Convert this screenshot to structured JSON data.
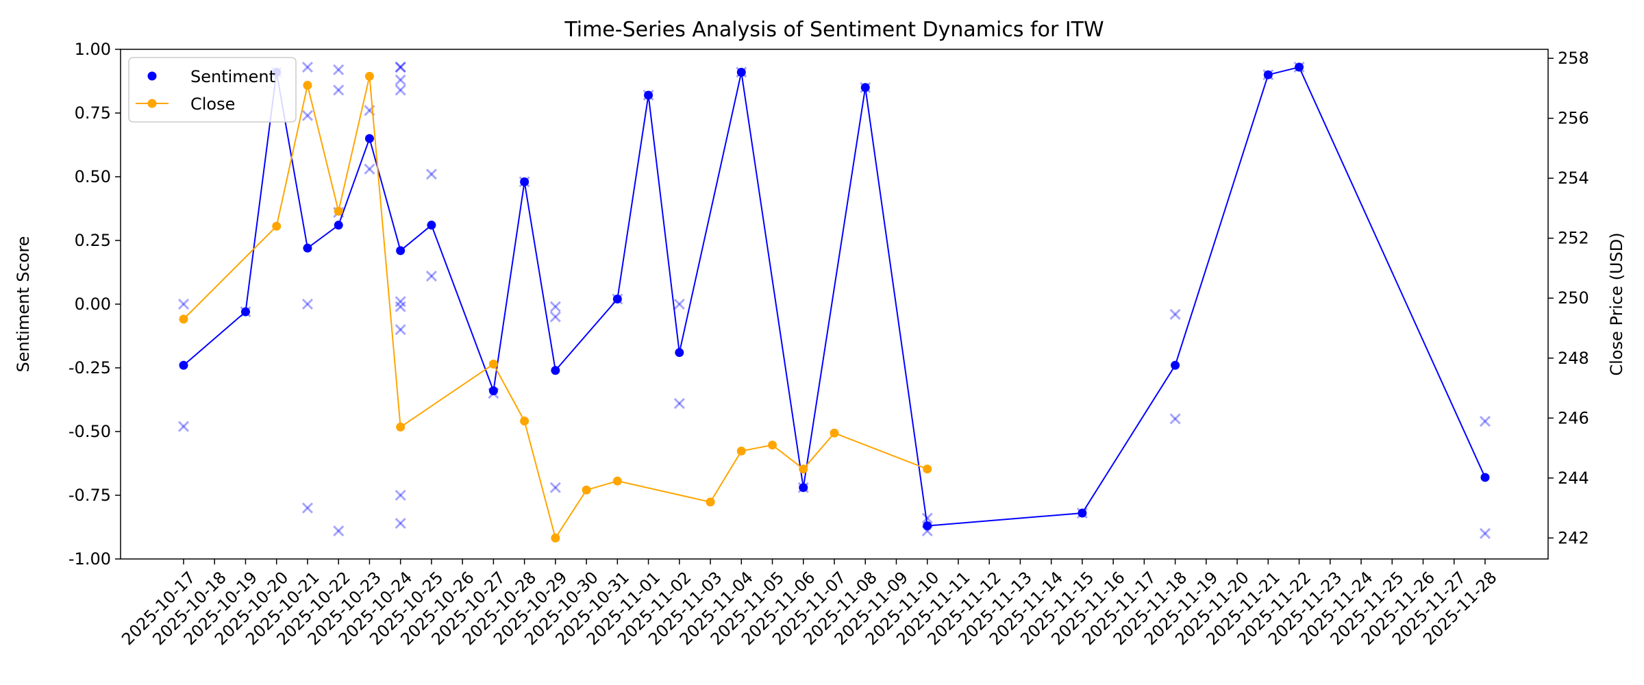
{
  "chart_data": {
    "type": "line",
    "title": "Time-Series Analysis of Sentiment Dynamics for ITW",
    "ylabel": "Sentiment Score",
    "y2label": "Close Price (USD)",
    "xlabel": "",
    "ylim": [
      -1.0,
      1.0
    ],
    "y2lim": [
      241.3,
      258.3
    ],
    "yticks": [
      "-1.00",
      "-0.75",
      "-0.50",
      "-0.25",
      "0.00",
      "0.25",
      "0.50",
      "0.75",
      "1.00"
    ],
    "y2ticks": [
      "242",
      "244",
      "246",
      "248",
      "250",
      "252",
      "254",
      "256",
      "258"
    ],
    "x_dates": [
      "2025-10-17",
      "2025-10-18",
      "2025-10-19",
      "2025-10-20",
      "2025-10-21",
      "2025-10-22",
      "2025-10-23",
      "2025-10-24",
      "2025-10-25",
      "2025-10-26",
      "2025-10-27",
      "2025-10-28",
      "2025-10-29",
      "2025-10-30",
      "2025-10-31",
      "2025-11-01",
      "2025-11-02",
      "2025-11-03",
      "2025-11-04",
      "2025-11-05",
      "2025-11-06",
      "2025-11-07",
      "2025-11-08",
      "2025-11-09",
      "2025-11-10",
      "2025-11-11",
      "2025-11-12",
      "2025-11-13",
      "2025-11-14",
      "2025-11-15",
      "2025-11-16",
      "2025-11-17",
      "2025-11-18",
      "2025-11-19",
      "2025-11-20",
      "2025-11-21",
      "2025-11-22",
      "2025-11-23",
      "2025-11-24",
      "2025-11-25",
      "2025-11-26",
      "2025-11-27",
      "2025-11-28"
    ],
    "legend_position": "top-left",
    "grid": false,
    "series": [
      {
        "name": "Sentiment",
        "color": "#0000ff",
        "axis": "left",
        "marker": "circle",
        "points": [
          [
            "2025-10-17",
            -0.24
          ],
          [
            "2025-10-19",
            -0.03
          ],
          [
            "2025-10-20",
            0.91
          ],
          [
            "2025-10-21",
            0.22
          ],
          [
            "2025-10-22",
            0.31
          ],
          [
            "2025-10-23",
            0.65
          ],
          [
            "2025-10-24",
            0.21
          ],
          [
            "2025-10-25",
            0.31
          ],
          [
            "2025-10-27",
            -0.34
          ],
          [
            "2025-10-28",
            0.48
          ],
          [
            "2025-10-29",
            -0.26
          ],
          [
            "2025-10-31",
            0.02
          ],
          [
            "2025-11-01",
            0.82
          ],
          [
            "2025-11-02",
            -0.19
          ],
          [
            "2025-11-04",
            0.91
          ],
          [
            "2025-11-06",
            -0.72
          ],
          [
            "2025-11-08",
            0.85
          ],
          [
            "2025-11-10",
            -0.87
          ],
          [
            "2025-11-15",
            -0.82
          ],
          [
            "2025-11-18",
            -0.24
          ],
          [
            "2025-11-21",
            0.9
          ],
          [
            "2025-11-22",
            0.93
          ],
          [
            "2025-11-28",
            -0.68
          ]
        ]
      },
      {
        "name": "Close",
        "color": "#ffa500",
        "axis": "right",
        "marker": "circle",
        "points": [
          [
            "2025-10-17",
            249.3
          ],
          [
            "2025-10-20",
            252.4
          ],
          [
            "2025-10-21",
            257.1
          ],
          [
            "2025-10-22",
            252.9
          ],
          [
            "2025-10-23",
            257.4
          ],
          [
            "2025-10-24",
            245.7
          ],
          [
            "2025-10-27",
            247.8
          ],
          [
            "2025-10-28",
            245.9
          ],
          [
            "2025-10-29",
            242.0
          ],
          [
            "2025-10-30",
            243.6
          ],
          [
            "2025-10-31",
            243.9
          ],
          [
            "2025-11-03",
            243.2
          ],
          [
            "2025-11-04",
            244.9
          ],
          [
            "2025-11-05",
            245.1
          ],
          [
            "2025-11-06",
            244.3
          ],
          [
            "2025-11-07",
            245.5
          ],
          [
            "2025-11-10",
            244.3
          ]
        ]
      }
    ],
    "raw_scores": {
      "color": "#0000ff",
      "marker": "x",
      "points": [
        [
          "2025-10-17",
          0.0
        ],
        [
          "2025-10-17",
          -0.48
        ],
        [
          "2025-10-19",
          -0.03
        ],
        [
          "2025-10-20",
          0.91
        ],
        [
          "2025-10-21",
          0.93
        ],
        [
          "2025-10-21",
          0.74
        ],
        [
          "2025-10-21",
          0.0
        ],
        [
          "2025-10-21",
          -0.8
        ],
        [
          "2025-10-22",
          0.92
        ],
        [
          "2025-10-22",
          0.84
        ],
        [
          "2025-10-22",
          0.36
        ],
        [
          "2025-10-22",
          -0.89
        ],
        [
          "2025-10-23",
          0.76
        ],
        [
          "2025-10-23",
          0.53
        ],
        [
          "2025-10-24",
          0.93
        ],
        [
          "2025-10-24",
          0.93
        ],
        [
          "2025-10-24",
          0.88
        ],
        [
          "2025-10-24",
          0.84
        ],
        [
          "2025-10-24",
          0.01
        ],
        [
          "2025-10-24",
          -0.01
        ],
        [
          "2025-10-24",
          -0.1
        ],
        [
          "2025-10-24",
          -0.75
        ],
        [
          "2025-10-24",
          -0.86
        ],
        [
          "2025-10-25",
          0.51
        ],
        [
          "2025-10-25",
          0.11
        ],
        [
          "2025-10-27",
          -0.35
        ],
        [
          "2025-10-28",
          0.48
        ],
        [
          "2025-10-29",
          -0.01
        ],
        [
          "2025-10-29",
          -0.05
        ],
        [
          "2025-10-29",
          -0.72
        ],
        [
          "2025-10-31",
          0.02
        ],
        [
          "2025-11-01",
          0.82
        ],
        [
          "2025-11-02",
          0.0
        ],
        [
          "2025-11-02",
          -0.39
        ],
        [
          "2025-11-04",
          0.91
        ],
        [
          "2025-11-06",
          -0.72
        ],
        [
          "2025-11-08",
          0.85
        ],
        [
          "2025-11-10",
          -0.84
        ],
        [
          "2025-11-10",
          -0.89
        ],
        [
          "2025-11-15",
          -0.82
        ],
        [
          "2025-11-18",
          -0.04
        ],
        [
          "2025-11-18",
          -0.45
        ],
        [
          "2025-11-21",
          0.9
        ],
        [
          "2025-11-22",
          0.93
        ],
        [
          "2025-11-28",
          -0.46
        ],
        [
          "2025-11-28",
          -0.9
        ]
      ]
    }
  }
}
